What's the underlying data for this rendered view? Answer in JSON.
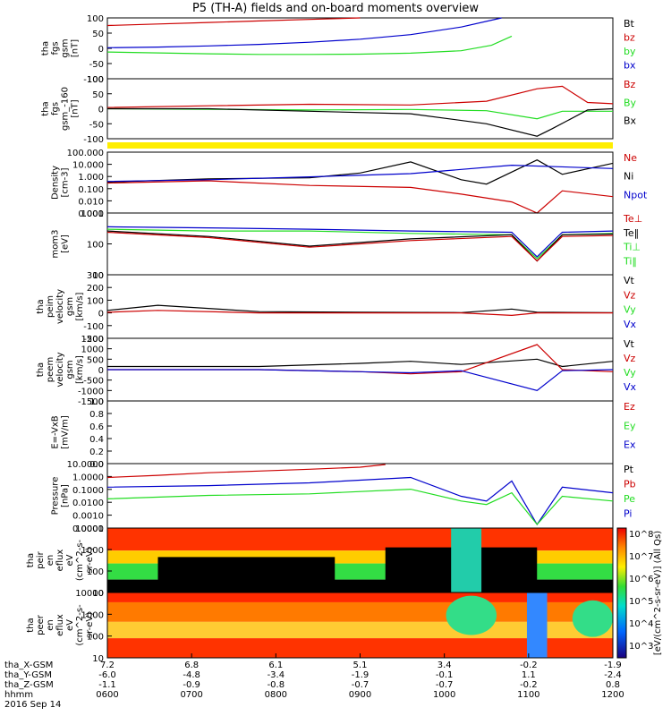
{
  "title": "P5 (TH-A) fields and on-board moments overview",
  "footer_date": "2016 Sep 14",
  "colorbar_label": "[eV/(cm^2-s-sr-eV)] (All Qs)",
  "colors": {
    "black": "#000000",
    "red": "#cc0000",
    "green": "#22dd22",
    "blue": "#0000cc",
    "yellow": "#ffee00"
  },
  "chart_data": [
    {
      "type": "line",
      "ylabel": [
        "tha",
        "fgs",
        "gsm",
        "[nT]"
      ],
      "ylim": [
        -100,
        100
      ],
      "yticks": [
        "100",
        "50",
        "0",
        "-50",
        "-100"
      ],
      "legend": [
        {
          "label": "Bt",
          "color": "black"
        },
        {
          "label": "bz",
          "color": "red"
        },
        {
          "label": "by",
          "color": "green"
        },
        {
          "label": "bx",
          "color": "blue"
        }
      ],
      "series": [
        {
          "color": "red",
          "x": [
            0,
            0.1,
            0.2,
            0.3,
            0.4,
            0.5
          ],
          "y": [
            75,
            80,
            85,
            90,
            95,
            100
          ]
        },
        {
          "color": "blue",
          "x": [
            0,
            0.1,
            0.2,
            0.3,
            0.4,
            0.5,
            0.6,
            0.7,
            0.78
          ],
          "y": [
            2,
            4,
            8,
            13,
            20,
            30,
            45,
            70,
            100
          ]
        },
        {
          "color": "green",
          "x": [
            0,
            0.1,
            0.2,
            0.3,
            0.4,
            0.5,
            0.6,
            0.7,
            0.76,
            0.8
          ],
          "y": [
            -12,
            -15,
            -18,
            -20,
            -20,
            -19,
            -16,
            -8,
            10,
            40
          ]
        }
      ]
    },
    {
      "type": "line",
      "ylabel": [
        "tha",
        "fgs",
        "gsm_-160",
        "[nT]"
      ],
      "ylim": [
        -120,
        120
      ],
      "yticks": [
        "100",
        "50",
        "0",
        "-50",
        "-100"
      ],
      "legend": [
        {
          "label": "Bz",
          "color": "red"
        },
        {
          "label": "By",
          "color": "green"
        },
        {
          "label": "Bx",
          "color": "black"
        }
      ],
      "series": [
        {
          "color": "red",
          "x": [
            0,
            0.2,
            0.4,
            0.6,
            0.75,
            0.85,
            0.9,
            0.95,
            1.0
          ],
          "y": [
            5,
            12,
            18,
            15,
            30,
            80,
            90,
            25,
            20
          ]
        },
        {
          "color": "green",
          "x": [
            0,
            0.2,
            0.4,
            0.6,
            0.75,
            0.85,
            0.9,
            0.95,
            1.0
          ],
          "y": [
            0,
            -2,
            -5,
            -3,
            -8,
            -40,
            -10,
            -10,
            -10
          ]
        },
        {
          "color": "black",
          "x": [
            0,
            0.2,
            0.4,
            0.6,
            0.75,
            0.85,
            0.88,
            0.95,
            1.0
          ],
          "y": [
            0,
            0,
            -10,
            -20,
            -60,
            -110,
            -80,
            -5,
            0
          ]
        }
      ]
    },
    {
      "type": "line",
      "ylabel": [
        "Density",
        "[cm-3]"
      ],
      "ylim": [
        0.001,
        300
      ],
      "yticks": [
        "100.000",
        "10.000",
        "1.000",
        "0.100",
        "0.010",
        "0.001"
      ],
      "legend": [
        {
          "label": "Ne",
          "color": "red"
        },
        {
          "label": "Ni",
          "color": "black"
        },
        {
          "label": "Npot",
          "color": "blue"
        }
      ],
      "series": [
        {
          "color": "black",
          "x": [
            0,
            0.2,
            0.4,
            0.5,
            0.6,
            0.7,
            0.75,
            0.85,
            0.9,
            1.0
          ],
          "y": [
            0.6,
            1.2,
            1.5,
            4,
            40,
            1,
            0.4,
            60,
            3,
            30
          ]
        },
        {
          "color": "blue",
          "x": [
            0,
            0.2,
            0.4,
            0.6,
            0.8,
            1.0
          ],
          "y": [
            0.7,
            1,
            1.8,
            3.5,
            20,
            10
          ]
        },
        {
          "color": "red",
          "x": [
            0,
            0.2,
            0.4,
            0.6,
            0.7,
            0.8,
            0.85,
            0.9,
            1.0
          ],
          "y": [
            0.5,
            0.8,
            0.3,
            0.2,
            0.05,
            0.01,
            0.001,
            0.1,
            0.03
          ]
        }
      ]
    },
    {
      "type": "line",
      "ylabel": [
        "mom3",
        "[eV]"
      ],
      "ylim": [
        1,
        30000
      ],
      "yticks": [
        "1000",
        "100",
        "10"
      ],
      "legend": [
        {
          "label": "Te⊥",
          "color": "red"
        },
        {
          "label": "Te‖",
          "color": "black"
        },
        {
          "label": "Ti⊥",
          "color": "green"
        },
        {
          "label": "Ti‖",
          "color": "green"
        }
      ],
      "series": [
        {
          "color": "blue",
          "x": [
            0,
            0.2,
            0.4,
            0.6,
            0.8,
            0.85,
            0.9,
            1.0
          ],
          "y": [
            3000,
            2500,
            2000,
            1500,
            1200,
            20,
            1200,
            1500
          ]
        },
        {
          "color": "green",
          "x": [
            0,
            0.2,
            0.4,
            0.6,
            0.8,
            0.85,
            0.9,
            1.0
          ],
          "y": [
            2000,
            1500,
            1500,
            1000,
            800,
            15,
            800,
            1000
          ]
        },
        {
          "color": "black",
          "x": [
            0,
            0.2,
            0.4,
            0.6,
            0.8,
            0.85,
            0.9,
            1.0
          ],
          "y": [
            1500,
            600,
            120,
            400,
            800,
            10,
            800,
            900
          ]
        },
        {
          "color": "red",
          "x": [
            0,
            0.2,
            0.4,
            0.6,
            0.8,
            0.85,
            0.9,
            1.0
          ],
          "y": [
            1200,
            500,
            100,
            300,
            600,
            10,
            600,
            700
          ]
        }
      ]
    },
    {
      "type": "line",
      "ylabel": [
        "tha",
        "peim",
        "velocity",
        "gsm",
        "[km/s]"
      ],
      "ylim": [
        -200,
        300
      ],
      "yticks": [
        "300",
        "200",
        "100",
        "0",
        "-100",
        "-200"
      ],
      "legend": [
        {
          "label": "Vt",
          "color": "black"
        },
        {
          "label": "Vz",
          "color": "red"
        },
        {
          "label": "Vy",
          "color": "green"
        },
        {
          "label": "Vx",
          "color": "blue"
        }
      ],
      "series": [
        {
          "color": "black",
          "x": [
            0,
            0.1,
            0.3,
            0.5,
            0.7,
            0.8,
            0.85,
            1.0
          ],
          "y": [
            20,
            60,
            10,
            5,
            2,
            30,
            5,
            2
          ]
        },
        {
          "color": "red",
          "x": [
            0,
            0.1,
            0.3,
            0.5,
            0.7,
            0.8,
            0.85,
            1.0
          ],
          "y": [
            5,
            20,
            0,
            0,
            0,
            -20,
            0,
            0
          ]
        }
      ]
    },
    {
      "type": "line",
      "ylabel": [
        "tha",
        "peem",
        "velocity",
        "gsm",
        "[km/s]"
      ],
      "ylim": [
        -1500,
        1500
      ],
      "yticks": [
        "1500",
        "1000",
        "500",
        "0",
        "-500",
        "-1000",
        "-1500"
      ],
      "legend": [
        {
          "label": "Vt",
          "color": "black"
        },
        {
          "label": "Vz",
          "color": "red"
        },
        {
          "label": "Vy",
          "color": "green"
        },
        {
          "label": "Vx",
          "color": "blue"
        }
      ],
      "series": [
        {
          "color": "black",
          "x": [
            0,
            0.3,
            0.5,
            0.6,
            0.7,
            0.85,
            0.9,
            1.0
          ],
          "y": [
            150,
            150,
            300,
            400,
            250,
            500,
            150,
            400
          ]
        },
        {
          "color": "red",
          "x": [
            0,
            0.3,
            0.5,
            0.6,
            0.7,
            0.85,
            0.9,
            1.0
          ],
          "y": [
            0,
            0,
            -100,
            -200,
            -100,
            1200,
            0,
            -100
          ]
        },
        {
          "color": "blue",
          "x": [
            0,
            0.3,
            0.5,
            0.6,
            0.7,
            0.85,
            0.9,
            1.0
          ],
          "y": [
            0,
            0,
            -100,
            -150,
            -50,
            -1000,
            -50,
            0
          ]
        }
      ]
    },
    {
      "type": "line",
      "ylabel": [
        "E=-VxB",
        "[mV/m]"
      ],
      "ylim": [
        0,
        1
      ],
      "yticks": [
        "1.0",
        "0.8",
        "0.6",
        "0.4",
        "0.2",
        "0.0"
      ],
      "legend": [
        {
          "label": "Ez",
          "color": "red"
        },
        {
          "label": "Ey",
          "color": "green"
        },
        {
          "label": "Ex",
          "color": "blue"
        }
      ],
      "series": []
    },
    {
      "type": "line",
      "ylabel": [
        "Pressure",
        "[nPa]"
      ],
      "ylim": [
        0.0001,
        30
      ],
      "yticks": [
        "10.0000",
        "1.0000",
        "0.1000",
        "0.0100",
        "0.0010",
        "0.0001"
      ],
      "legend": [
        {
          "label": "Pt",
          "color": "black"
        },
        {
          "label": "Pb",
          "color": "red"
        },
        {
          "label": "Pe",
          "color": "green"
        },
        {
          "label": "Pi",
          "color": "blue"
        }
      ],
      "series": [
        {
          "color": "red",
          "x": [
            0,
            0.1,
            0.2,
            0.3,
            0.4,
            0.5,
            0.55
          ],
          "y": [
            2,
            3,
            5,
            7,
            10,
            15,
            25
          ]
        },
        {
          "color": "blue",
          "x": [
            0,
            0.2,
            0.4,
            0.6,
            0.7,
            0.75,
            0.8,
            0.85,
            0.9,
            1.0
          ],
          "y": [
            0.3,
            0.4,
            0.7,
            2,
            0.05,
            0.02,
            1,
            0.0002,
            0.3,
            0.1
          ]
        },
        {
          "color": "green",
          "x": [
            0,
            0.2,
            0.4,
            0.6,
            0.7,
            0.75,
            0.8,
            0.85,
            0.9,
            1.0
          ],
          "y": [
            0.03,
            0.06,
            0.08,
            0.2,
            0.02,
            0.01,
            0.1,
            0.0002,
            0.05,
            0.02
          ]
        }
      ]
    },
    {
      "type": "heatmap",
      "ylabel": [
        "tha",
        "peir",
        "en",
        "eflux",
        "eV",
        "(cm^2-s-",
        "sr-eV)"
      ],
      "ylim": [
        5,
        30000
      ],
      "yticks": [
        "10000",
        "1000",
        "100",
        "10"
      ]
    },
    {
      "type": "heatmap",
      "ylabel": [
        "tha",
        "peer",
        "en",
        "eflux",
        "eV",
        "(cm^2-s-",
        "sr-eV)"
      ],
      "ylim": [
        5,
        30000
      ],
      "yticks": [
        "10000",
        "1000",
        "100",
        "10"
      ]
    }
  ],
  "x_axis": {
    "rows": [
      {
        "label": "tha_X-GSM",
        "values": [
          "7.2",
          "6.8",
          "6.1",
          "5.1",
          "3.4",
          "-0.2",
          "-1.9"
        ]
      },
      {
        "label": "tha_Y-GSM",
        "values": [
          "-6.0",
          "-4.8",
          "-3.4",
          "-1.9",
          "-0.1",
          "1.1",
          "-2.4"
        ]
      },
      {
        "label": "tha_Z-GSM",
        "values": [
          "-1.1",
          "-0.9",
          "-0.8",
          "-0.7",
          "-0.7",
          "-0.2",
          "0.8"
        ]
      },
      {
        "label": "hhmm",
        "values": [
          "0600",
          "0700",
          "0800",
          "0900",
          "1000",
          "1100",
          "1200"
        ]
      }
    ]
  },
  "colorbar_ticks": [
    "10^8",
    "10^7",
    "10^6",
    "10^5",
    "10^4",
    "10^3"
  ]
}
